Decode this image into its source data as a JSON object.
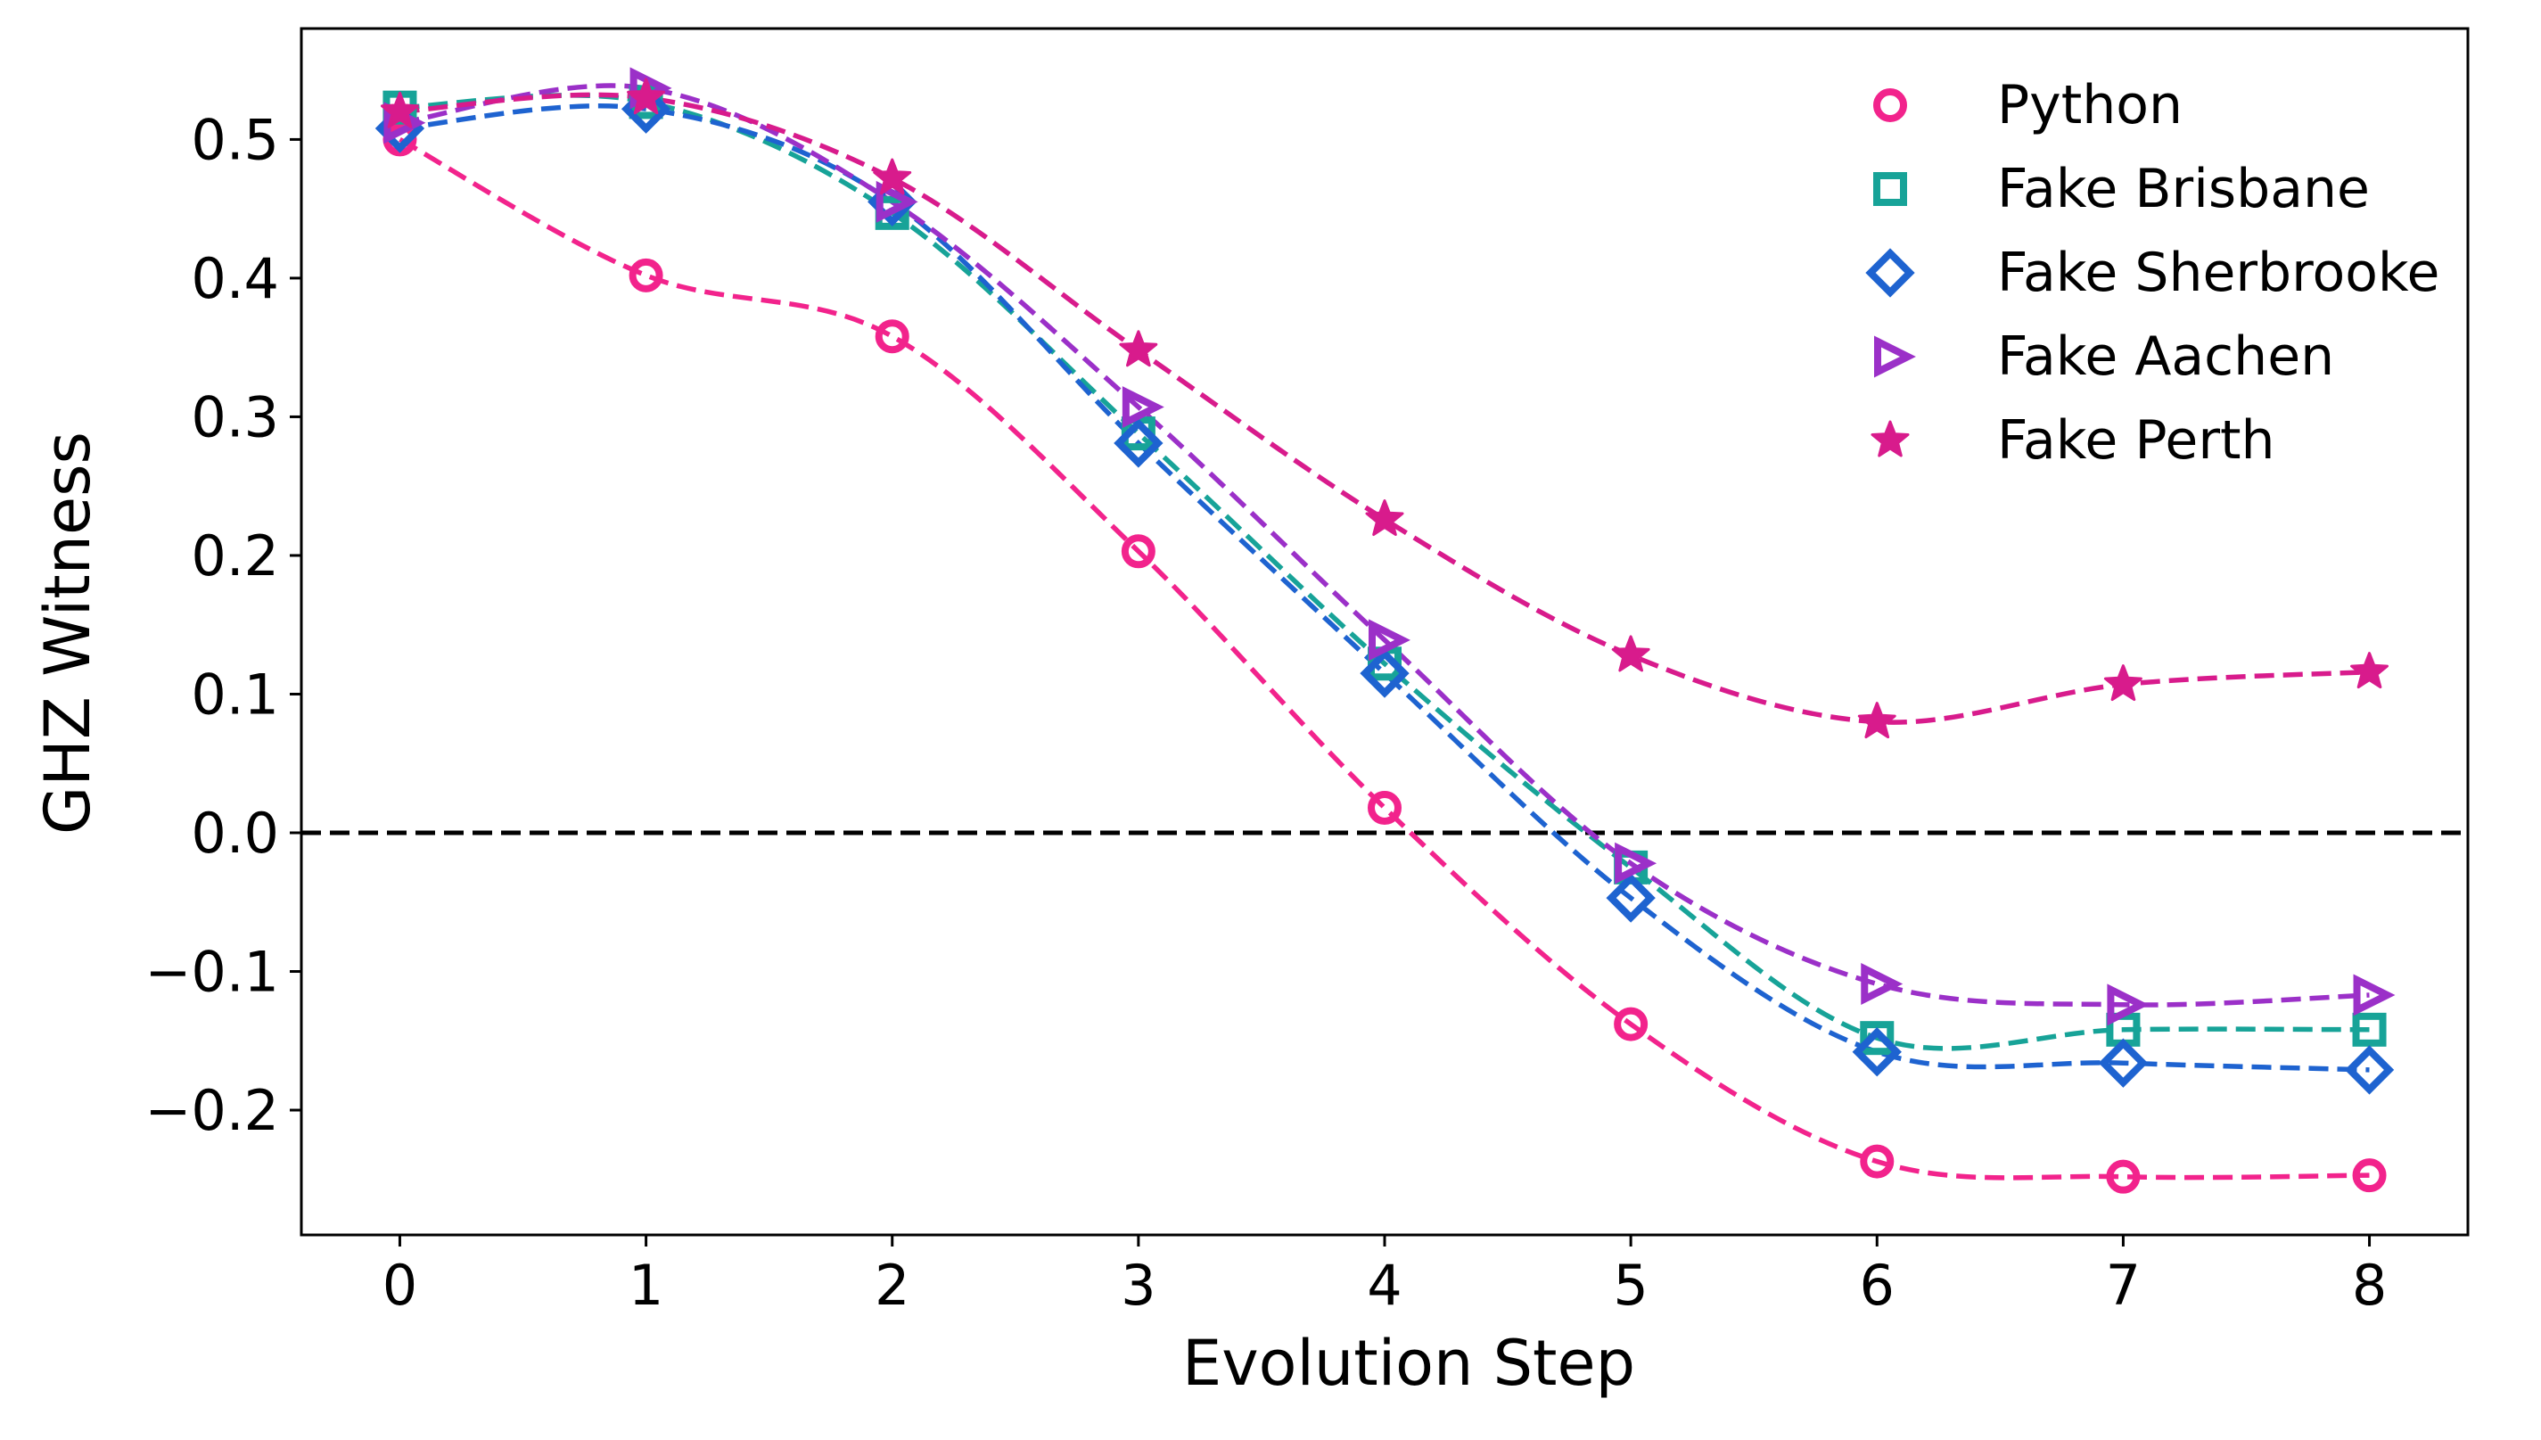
{
  "chart_data": {
    "type": "line",
    "title": "",
    "xlabel": "Evolution Step",
    "ylabel": "GHZ Witness",
    "x": [
      0,
      1,
      2,
      3,
      4,
      5,
      6,
      7,
      8
    ],
    "xlim": [
      -0.4,
      8.4
    ],
    "ylim": [
      -0.29,
      0.58
    ],
    "x_ticks": [
      {
        "value": 0,
        "label": "0"
      },
      {
        "value": 1,
        "label": "1"
      },
      {
        "value": 2,
        "label": "2"
      },
      {
        "value": 3,
        "label": "3"
      },
      {
        "value": 4,
        "label": "4"
      },
      {
        "value": 5,
        "label": "5"
      },
      {
        "value": 6,
        "label": "6"
      },
      {
        "value": 7,
        "label": "7"
      },
      {
        "value": 8,
        "label": "8"
      }
    ],
    "y_ticks": [
      {
        "value": 0.5,
        "label": "0.5"
      },
      {
        "value": 0.4,
        "label": "0.4"
      },
      {
        "value": 0.3,
        "label": "0.3"
      },
      {
        "value": 0.2,
        "label": "0.2"
      },
      {
        "value": 0.1,
        "label": "0.1"
      },
      {
        "value": 0.0,
        "label": "0.0"
      },
      {
        "value": -0.1,
        "label": "−0.1"
      },
      {
        "value": -0.2,
        "label": "−0.2"
      }
    ],
    "reference_line": {
      "y": 0.0,
      "style": "dashed",
      "color": "#000000"
    },
    "legend_position": "top-right",
    "series": [
      {
        "name": "Python",
        "marker": "circle",
        "color": "#F2238C",
        "values": [
          0.5,
          0.402,
          0.358,
          0.203,
          0.018,
          -0.138,
          -0.237,
          -0.248,
          -0.247
        ]
      },
      {
        "name": "Fake Brisbane",
        "marker": "square",
        "color": "#17A398",
        "values": [
          0.523,
          0.527,
          0.447,
          0.288,
          0.122,
          -0.025,
          -0.148,
          -0.142,
          -0.142
        ]
      },
      {
        "name": "Fake Sherbrooke",
        "marker": "diamond",
        "color": "#1E63D0",
        "values": [
          0.508,
          0.522,
          0.455,
          0.281,
          0.115,
          -0.047,
          -0.158,
          -0.166,
          -0.171
        ]
      },
      {
        "name": "Fake Aachen",
        "marker": "triangle-right",
        "color": "#9B30C8",
        "values": [
          0.512,
          0.537,
          0.455,
          0.307,
          0.139,
          -0.022,
          -0.109,
          -0.124,
          -0.117
        ]
      },
      {
        "name": "Fake Perth",
        "marker": "star",
        "color": "#D81B8C",
        "values": [
          0.52,
          0.53,
          0.472,
          0.348,
          0.226,
          0.128,
          0.08,
          0.107,
          0.116
        ]
      }
    ]
  }
}
